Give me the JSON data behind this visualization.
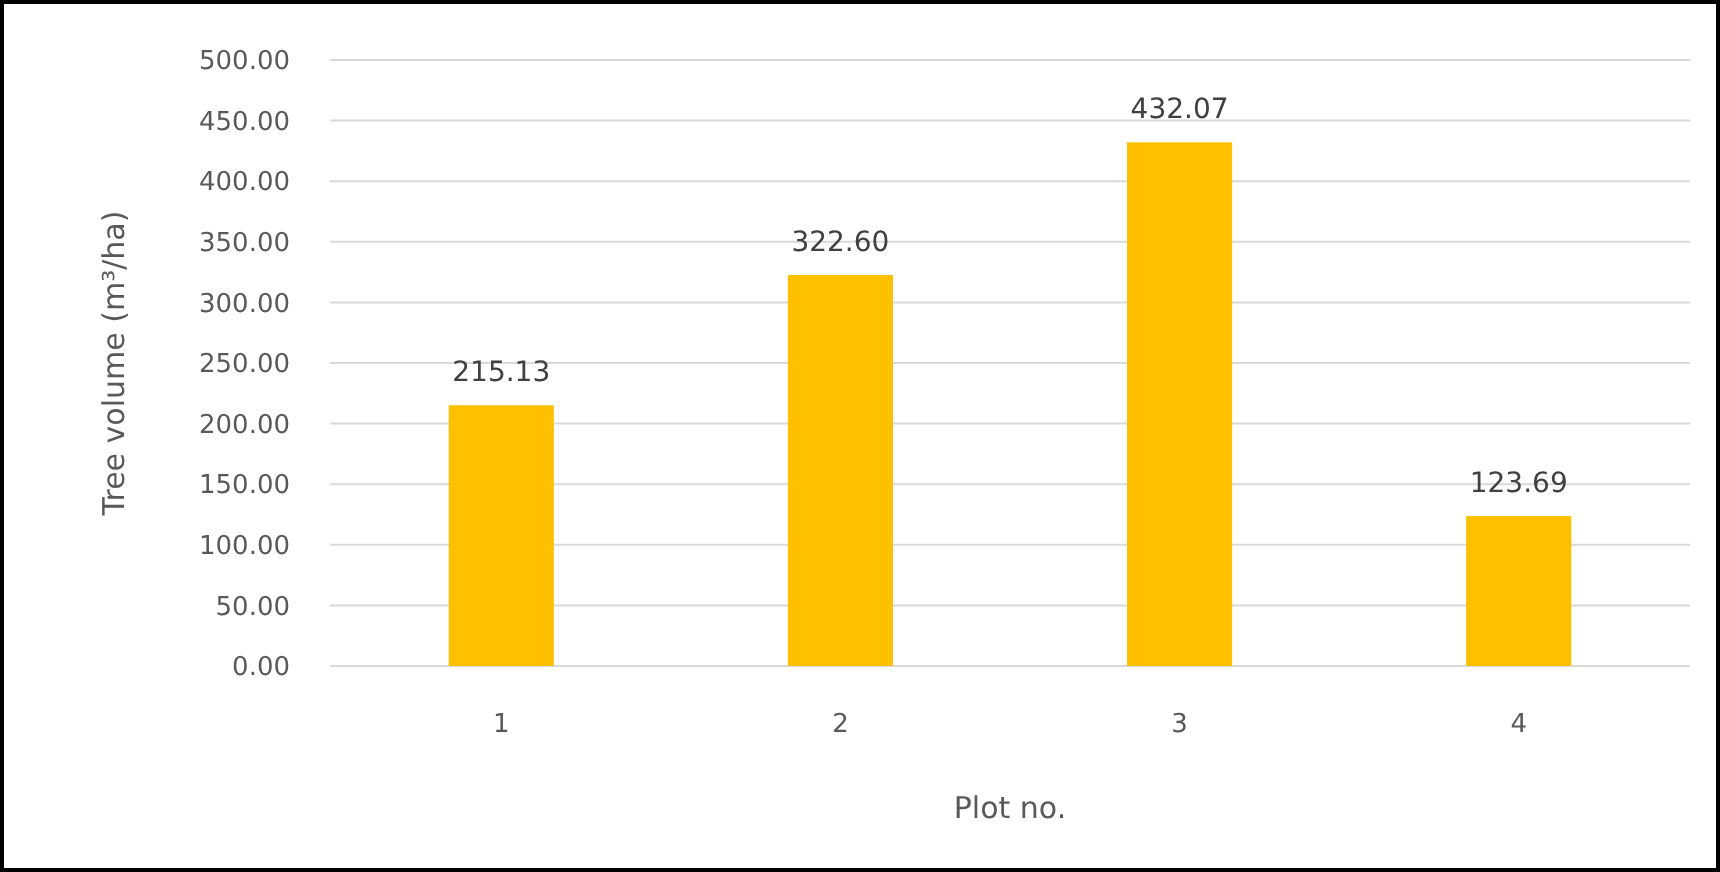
{
  "chart_data": {
    "type": "bar",
    "xlabel": "Plot no.",
    "ylabel": "Tree volume (m³/ha)",
    "categories": [
      "1",
      "2",
      "3",
      "4"
    ],
    "values": [
      215.13,
      322.6,
      432.07,
      123.69
    ],
    "value_labels": [
      "215.13",
      "322.60",
      "432.07",
      "123.69"
    ],
    "color": "#ffc000",
    "ylim": [
      0,
      500
    ],
    "yticks": [
      {
        "value": 0,
        "label": "0.00"
      },
      {
        "value": 50,
        "label": "50.00"
      },
      {
        "value": 100,
        "label": "100.00"
      },
      {
        "value": 150,
        "label": "150.00"
      },
      {
        "value": 200,
        "label": "200.00"
      },
      {
        "value": 250,
        "label": "250.00"
      },
      {
        "value": 300,
        "label": "300.00"
      },
      {
        "value": 350,
        "label": "350.00"
      },
      {
        "value": 400,
        "label": "400.00"
      },
      {
        "value": 450,
        "label": "450.00"
      },
      {
        "value": 500,
        "label": "500.00"
      }
    ],
    "grid": "y"
  }
}
